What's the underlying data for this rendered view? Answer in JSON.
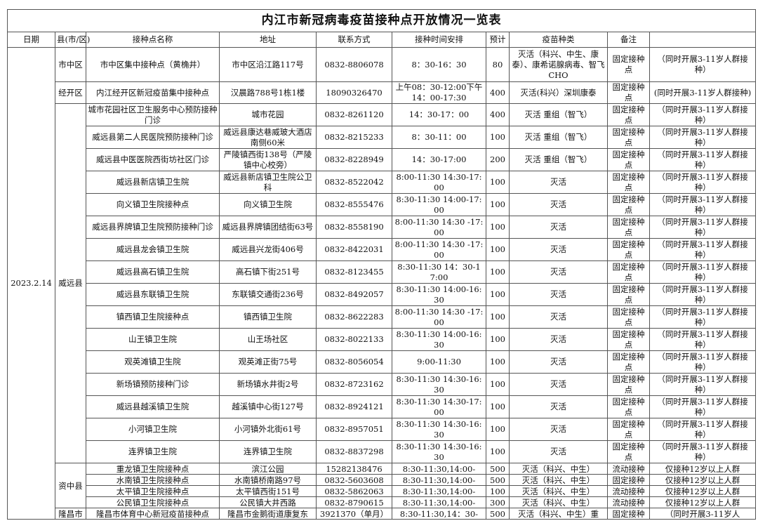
{
  "title": "内江市新冠病毒疫苗接种点开放情况一览表",
  "headers": [
    "日期",
    "县(市/区)",
    "接种点名称",
    "地址",
    "联系方式",
    "接种时间安排",
    "预计",
    "疫苗种类",
    "备注",
    ""
  ],
  "date": "2023.2.14",
  "districts": {
    "shizhong": "市中区",
    "jingkai": "经开区",
    "weiyuan": "威远县",
    "zizhong": "资中县",
    "longchang": "隆昌市"
  },
  "rows": [
    {
      "name": "市中区集中接种点（黄桷井）",
      "address": "市中区沿江路117号",
      "phone": "0832-8806078",
      "time": "8：30-16：30",
      "count": "80",
      "vaccine": "灭活（科兴、中生、康泰）、康希诺腺病毒、智飞CHO",
      "type": "固定接种点",
      "note": "（同时开展3-11岁人群接种）"
    },
    {
      "name": "内江经开区新冠疫苗集中接种点",
      "address": "汉晨路788号1栋1楼",
      "phone": "18090326470",
      "time": "上午08：30-12:00下午14：00-17:30",
      "count": "400",
      "vaccine": "灭活(科兴）深圳康泰",
      "type": "固定接种点",
      "note": "(同时开展3-11岁人群接种)"
    },
    {
      "name": "城市花园社区卫生服务中心预防接种门诊",
      "address": "城市花园",
      "phone": "0832-8261120",
      "time": "14：30-17：00",
      "count": "400",
      "vaccine": "灭活 重组（智飞）",
      "type": "固定接种点",
      "note": "（同时开展3-11岁人群接种）"
    },
    {
      "name": "威远县第二人民医院预防接种门诊",
      "address": "威远县康达巷威玻大酒店南侧60米",
      "phone": "0832-8215233",
      "time": "8：30-11：00",
      "count": "100",
      "vaccine": "灭活 重组（智飞）",
      "type": "固定接种点",
      "note": "（同时开展3-11岁人群接种）"
    },
    {
      "name": "威远县中医医院西街坊社区门诊",
      "address": "严陵镇西街138号（严陵镇中心校旁）",
      "phone": "0832-8228949",
      "time": "14：30-17:00",
      "count": "200",
      "vaccine": "灭活 重组（智飞）",
      "type": "固定接种点",
      "note": "（同时开展3-11岁人群接种）"
    },
    {
      "name": "威远县新店镇卫生院",
      "address": "威远县新店镇卫生院公卫科",
      "phone": "0832-8522042",
      "time": "8:00-11:30 14:30-17:00",
      "count": "100",
      "vaccine": "灭活",
      "type": "固定接种点",
      "note": "（同时开展3-11岁人群接种）"
    },
    {
      "name": "向义镇卫生院接种点",
      "address": "向义镇卫生院",
      "phone": "0832-8555476",
      "time": "8:30-11:30 14:00-17:00",
      "count": "100",
      "vaccine": "灭活",
      "type": "固定接种点",
      "note": "（同时开展3-11岁人群接种）"
    },
    {
      "name": "威远县界牌镇卫生院预防接种门诊",
      "address": "威远县界牌镇团结街63号",
      "phone": "0832-8558190",
      "time": "8:00-11:30 14:30 -17:00",
      "count": "100",
      "vaccine": "灭活",
      "type": "固定接种点",
      "note": "（同时开展3-11岁人群接种）"
    },
    {
      "name": "威远县龙会镇卫生院",
      "address": "威远县兴龙街406号",
      "phone": "0832-8422031",
      "time": "8:00-11:30 14:30 -17:00",
      "count": "100",
      "vaccine": "灭活",
      "type": "固定接种点",
      "note": "（同时开展3-11岁人群接种）"
    },
    {
      "name": "威远县高石镇卫生院",
      "address": "高石镇下街251号",
      "phone": "0832-8123455",
      "time": "8:30-11:30 14：30-17:00",
      "count": "100",
      "vaccine": "灭活",
      "type": "固定接种点",
      "note": "（同时开展3-11岁人群接种）"
    },
    {
      "name": "威远县东联镇卫生院",
      "address": "东联镇交通街236号",
      "phone": "0832-8492057",
      "time": "8:30-11:30 14:00-16:30",
      "count": "100",
      "vaccine": "灭活",
      "type": "固定接种点",
      "note": "（同时开展3-11岁人群接种）"
    },
    {
      "name": "镇西镇卫生院接种点",
      "address": "镇西镇卫生院",
      "phone": "0832-8622283",
      "time": "8:00-11:30 14:30 -17:00",
      "count": "100",
      "vaccine": "灭活",
      "type": "固定接种点",
      "note": "（同时开展3-11岁人群接种）"
    },
    {
      "name": "山王镇卫生院",
      "address": "山王场社区",
      "phone": "0832-8022133",
      "time": "8:30-11:30 14:00-16:30",
      "count": "100",
      "vaccine": "灭活",
      "type": "固定接种点",
      "note": "（同时开展3-11岁人群接种）"
    },
    {
      "name": "观英滩镇卫生院",
      "address": "观英滩正街75号",
      "phone": "0832-8056054",
      "time": "9:00-11:30",
      "count": "100",
      "vaccine": "灭活",
      "type": "固定接种点",
      "note": "（同时开展3-11岁人群接种）"
    },
    {
      "name": "新场镇预防接种门诊",
      "address": "新场镇水井街2号",
      "phone": "0832-8723162",
      "time": "8:30-11:30 14:30-16:30",
      "count": "100",
      "vaccine": "灭活",
      "type": "固定接种点",
      "note": "（同时开展3-11岁人群接种）"
    },
    {
      "name": "威远县越溪镇卫生院",
      "address": "越溪镇中心街127号",
      "phone": "0832-8924121",
      "time": "8:30-11:30 14:30-17:00",
      "count": "100",
      "vaccine": "灭活",
      "type": "固定接种点",
      "note": "（同时开展3-11岁人群接种）"
    },
    {
      "name": "小河镇卫生院",
      "address": "小河镇外北街61号",
      "phone": "0832-8957051",
      "time": "8:30-11:30 14:30-16:30",
      "count": "100",
      "vaccine": "灭活",
      "type": "固定接种点",
      "note": "（同时开展3-11岁人群接种）"
    },
    {
      "name": "连界镇卫生院",
      "address": "连界镇卫生院",
      "phone": "0832-8837298",
      "time": "8:30-11:30 14:30-16:30",
      "count": "100",
      "vaccine": "灭活",
      "type": "固定接种点",
      "note": "（同时开展3-11岁人群接种）"
    },
    {
      "name": "重龙镇卫生院接种点",
      "address": "滨江公园",
      "phone": "15282138476",
      "time": "8:30-11:30,14:00-",
      "count": "500",
      "vaccine": "灭活（科兴、中生）",
      "type": "流动接种",
      "note": "仅接种12岁以上人群"
    },
    {
      "name": "水南镇卫生院接种点",
      "address": "水南镇桥南路97号",
      "phone": "0832-5603608",
      "time": "8:30-11:30,14:00-",
      "count": "500",
      "vaccine": "灭活（科兴、中生）",
      "type": "固定接种",
      "note": "仅接种12岁以上人群"
    },
    {
      "name": "太平镇卫生院接种点",
      "address": "太平镇西街151号",
      "phone": "0832-5862063",
      "time": "8:30-11:30,14:00-",
      "count": "100",
      "vaccine": "灭活（科兴、中生）",
      "type": "流动接种",
      "note": "仅接种12岁以上人群"
    },
    {
      "name": "公民镇卫生院接种点",
      "address": "公民镇大井西路",
      "phone": "0832-8790615",
      "time": "8:30-11:30,14:00-",
      "count": "300",
      "vaccine": "灭活（科兴、中生）",
      "type": "流动接种",
      "note": "仅接种12岁以上人群"
    },
    {
      "name": "隆昌市体育中心新冠疫苗接种点",
      "address": "隆昌市金鹅街道康复东",
      "phone": "3921370（单月）",
      "time": "8:30-11:30,14：30-",
      "count": "500",
      "vaccine": "灭活（科兴、中生）重",
      "type": "固定接种",
      "note": "（同时开展3-11岁人",
      "hidden": ""
    }
  ]
}
